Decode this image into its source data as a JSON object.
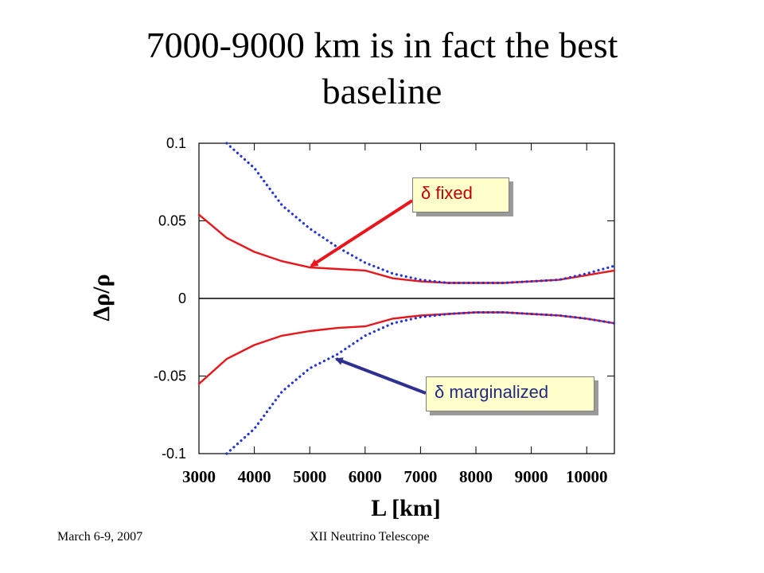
{
  "slide": {
    "title_line1": "7000-9000 km is in fact the best",
    "title_line2": "baseline",
    "footer_left": "March 6-9, 2007",
    "footer_center": "XII Neutrino Telescope"
  },
  "annotations": {
    "fixed": "δ fixed",
    "marginalized": "δ marginalized",
    "fixed_color": "#c00000",
    "marginalized_color": "#1f2a80",
    "fixed_arrow_target": {
      "x": 5000,
      "y": 0.02
    },
    "marginalized_arrow_target": {
      "x": 5450,
      "y": -0.039
    }
  },
  "chart_data": {
    "type": "line",
    "title": "",
    "xlabel": "L [km]",
    "ylabel": "Δρ/ρ",
    "xlim": [
      3000,
      10500
    ],
    "ylim": [
      -0.1,
      0.1
    ],
    "xticks": [
      3000,
      4000,
      5000,
      6000,
      7000,
      8000,
      9000,
      10000
    ],
    "xtick_labels": [
      "3000",
      "4000",
      "5000",
      "6000",
      "7000",
      "8000",
      "9000",
      "10000"
    ],
    "yticks": [
      -0.1,
      -0.05,
      0,
      0.05,
      0.1
    ],
    "ytick_labels": [
      "-0.1",
      "-0.05",
      "0",
      "0.05",
      "0.1"
    ],
    "zero_line": true,
    "grid": false,
    "series": [
      {
        "style": "solid",
        "color": "#e8161b",
        "x": [
          3000,
          3500,
          4000,
          4500,
          5000,
          5500,
          6000,
          6500,
          7000,
          7500,
          8000,
          8500,
          9000,
          9500,
          10000,
          10500
        ],
        "y": [
          0.054,
          0.039,
          0.03,
          0.024,
          0.02,
          0.019,
          0.018,
          0.013,
          0.011,
          0.01,
          0.01,
          0.01,
          0.011,
          0.012,
          0.015,
          0.018
        ]
      },
      {
        "style": "solid",
        "color": "#e8161b",
        "x": [
          3000,
          3500,
          4000,
          4500,
          5000,
          5500,
          6000,
          6500,
          7000,
          7500,
          8000,
          8500,
          9000,
          9500,
          10000,
          10500
        ],
        "y": [
          -0.055,
          -0.039,
          -0.03,
          -0.024,
          -0.021,
          -0.019,
          -0.018,
          -0.013,
          -0.011,
          -0.01,
          -0.009,
          -0.009,
          -0.01,
          -0.011,
          -0.013,
          -0.016
        ]
      },
      {
        "style": "dotted",
        "color": "#2233dd",
        "x": [
          3500,
          4000,
          4500,
          5000,
          5500,
          6000,
          6500,
          7000,
          7500,
          8000,
          8500,
          9000,
          9500,
          10000,
          10500
        ],
        "y": [
          0.1,
          0.084,
          0.06,
          0.045,
          0.033,
          0.023,
          0.016,
          0.012,
          0.01,
          0.01,
          0.01,
          0.011,
          0.012,
          0.016,
          0.021
        ]
      },
      {
        "style": "dotted",
        "color": "#2233dd",
        "x": [
          3500,
          4000,
          4500,
          5000,
          5500,
          6000,
          6500,
          7000,
          7500,
          8000,
          8500,
          9000,
          9500,
          10000,
          10500
        ],
        "y": [
          -0.1,
          -0.084,
          -0.06,
          -0.045,
          -0.036,
          -0.024,
          -0.016,
          -0.012,
          -0.01,
          -0.009,
          -0.009,
          -0.01,
          -0.011,
          -0.013,
          -0.016
        ]
      }
    ]
  }
}
